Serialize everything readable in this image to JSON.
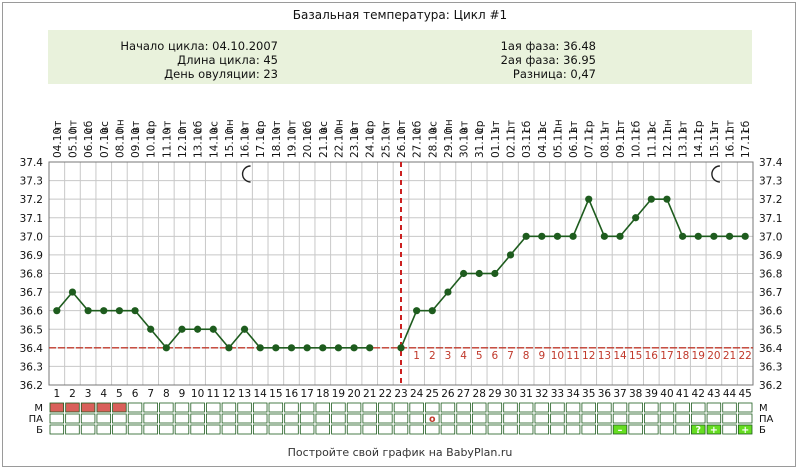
{
  "title": "Базальная температура: Цикл #1",
  "info": {
    "cycle_start": "Начало цикла: 04.10.2007",
    "cycle_length": "Длина цикла: 45",
    "ovulation_day": "День овуляции: 23",
    "phase1": "1ая фаза: 36.48",
    "phase2": "2ая фаза: 36.95",
    "difference": "Разница: 0,47"
  },
  "footer": "Постройте свой график на BabyPlan.ru",
  "colors": {
    "line": "#1e5c1e",
    "coverline": "#c0392b",
    "ovulation": "#cc2020",
    "menses": "#d9605a",
    "flag": "#66dd22",
    "info_bg": "#e9f2dc",
    "grid": "#c8c8c8"
  },
  "chart_data": {
    "type": "line",
    "ylim": [
      36.2,
      37.4
    ],
    "y_ticks": [
      "36.2",
      "36.3",
      "36.4",
      "36.5",
      "36.6",
      "36.7",
      "36.8",
      "36.9",
      "37.0",
      "37.1",
      "37.2",
      "37.3",
      "37.4"
    ],
    "coverline": 36.4,
    "ovulation_day": 23,
    "moon_days": [
      13,
      43
    ],
    "days": [
      "1",
      "2",
      "3",
      "4",
      "5",
      "6",
      "7",
      "8",
      "9",
      "10",
      "11",
      "12",
      "13",
      "14",
      "15",
      "16",
      "17",
      "18",
      "19",
      "20",
      "21",
      "22",
      "23",
      "24",
      "25",
      "26",
      "27",
      "28",
      "29",
      "30",
      "31",
      "32",
      "33",
      "34",
      "35",
      "36",
      "37",
      "38",
      "39",
      "40",
      "41",
      "42",
      "43",
      "44",
      "45"
    ],
    "weekdays": [
      "чт",
      "пт",
      "сб",
      "вс",
      "пн",
      "вт",
      "ср",
      "чт",
      "пт",
      "сб",
      "вс",
      "пн",
      "вт",
      "ср",
      "чт",
      "пт",
      "сб",
      "вс",
      "пн",
      "вт",
      "ср",
      "чт",
      "пт",
      "сб",
      "вс",
      "пн",
      "вт",
      "ср",
      "чт",
      "пт",
      "сб",
      "вс",
      "пн",
      "вт",
      "ср",
      "чт",
      "пт",
      "сб",
      "вс",
      "пн",
      "вт",
      "ср",
      "чт",
      "пт",
      "сб"
    ],
    "dates": [
      "04.10",
      "05.10",
      "06.10",
      "07.10",
      "08.10",
      "09.10",
      "10.10",
      "11.10",
      "12.10",
      "13.10",
      "14.10",
      "15.10",
      "16.10",
      "17.10",
      "18.10",
      "19.10",
      "20.10",
      "21.10",
      "22.10",
      "23.10",
      "24.10",
      "25.10",
      "26.10",
      "27.10",
      "28.10",
      "29.10",
      "30.10",
      "31.10",
      "01.11",
      "02.11",
      "03.11",
      "04.11",
      "05.11",
      "06.11",
      "07.11",
      "08.11",
      "09.11",
      "10.11",
      "11.11",
      "12.11",
      "13.11",
      "14.11",
      "15.11",
      "16.11",
      "17.11"
    ],
    "series": [
      {
        "values": [
          36.6,
          36.7,
          36.6,
          36.6,
          36.6,
          36.6,
          36.5,
          36.4,
          36.5,
          36.5,
          36.5,
          36.4,
          36.5,
          36.4,
          36.4,
          36.4,
          36.4,
          36.4,
          36.4,
          36.4,
          36.4,
          null,
          36.4,
          36.6,
          36.6,
          36.7,
          36.8,
          36.8,
          36.8,
          36.9,
          37.0,
          37.0,
          37.0,
          37.0,
          37.2,
          37.0,
          37.0,
          37.1,
          37.2,
          37.2,
          37.0,
          37.0,
          37.0,
          37.0,
          37.0
        ]
      }
    ],
    "luteal_labels": [
      "1",
      "2",
      "3",
      "4",
      "5",
      "6",
      "7",
      "8",
      "9",
      "10",
      "11",
      "12",
      "13",
      "14",
      "15",
      "16",
      "17",
      "18",
      "19",
      "20",
      "21",
      "22"
    ],
    "rows": [
      {
        "label": "М",
        "marks": [
          1,
          1,
          1,
          1,
          1,
          0,
          0,
          0,
          0,
          0,
          0,
          0,
          0,
          0,
          0,
          0,
          0,
          0,
          0,
          0,
          0,
          0,
          0,
          0,
          0,
          0,
          0,
          0,
          0,
          0,
          0,
          0,
          0,
          0,
          0,
          0,
          0,
          0,
          0,
          0,
          0,
          0,
          0,
          0,
          0
        ]
      },
      {
        "label": "ПА",
        "marks": [
          "",
          "",
          "",
          "",
          "",
          "",
          "",
          "",
          "",
          "",
          "",
          "",
          "",
          "",
          "",
          "",
          "",
          "",
          "",
          "",
          "",
          "",
          "",
          "",
          "o",
          "",
          "",
          "",
          "",
          "",
          "",
          "",
          "",
          "",
          "",
          "",
          "",
          "",
          "",
          "",
          "",
          "",
          "",
          "",
          ""
        ]
      },
      {
        "label": "Б",
        "marks": [
          "",
          "",
          "",
          "",
          "",
          "",
          "",
          "",
          "",
          "",
          "",
          "",
          "",
          "",
          "",
          "",
          "",
          "",
          "",
          "",
          "",
          "",
          "",
          "",
          "",
          "",
          "",
          "",
          "",
          "",
          "",
          "",
          "",
          "",
          "",
          "",
          "–",
          "",
          "",
          "",
          "",
          "?",
          "+",
          "",
          "+"
        ]
      }
    ]
  }
}
